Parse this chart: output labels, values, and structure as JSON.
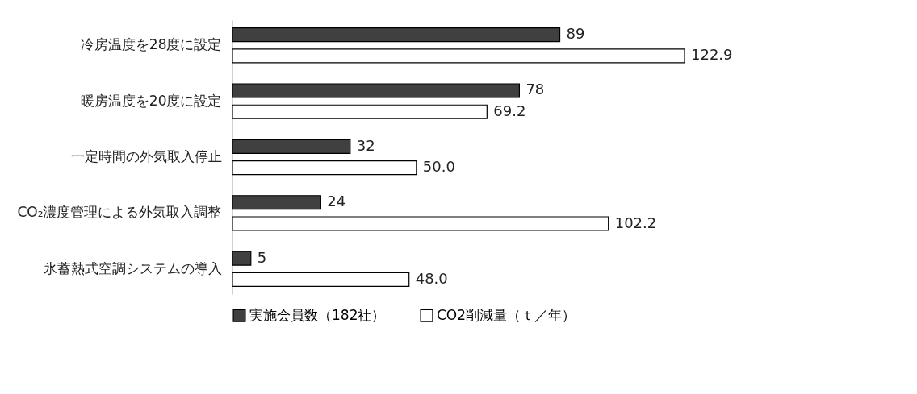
{
  "chart_data": {
    "type": "bar",
    "orientation": "horizontal",
    "categories": [
      "冷房温度を28度に設定",
      "暖房温度を20度に設定",
      "一定時間の外気取入停止",
      "CO₂濃度管理による外気取入調整",
      "氷蓄熱式空調システムの導入"
    ],
    "series": [
      {
        "name": "実施会員数（182社）",
        "color": "#404040",
        "values": [
          89,
          78,
          32,
          24,
          5
        ],
        "value_labels": [
          "89",
          "78",
          "32",
          "24",
          "5"
        ]
      },
      {
        "name": "CO2削減量（ｔ／年）",
        "color": "#ffffff",
        "values": [
          122.9,
          69.2,
          50.0,
          102.2,
          48.0
        ],
        "value_labels": [
          "122.9",
          "69.2",
          "50.0",
          "102.2",
          "48.0"
        ]
      }
    ],
    "tick_labels": "y",
    "legend": "bottom"
  }
}
